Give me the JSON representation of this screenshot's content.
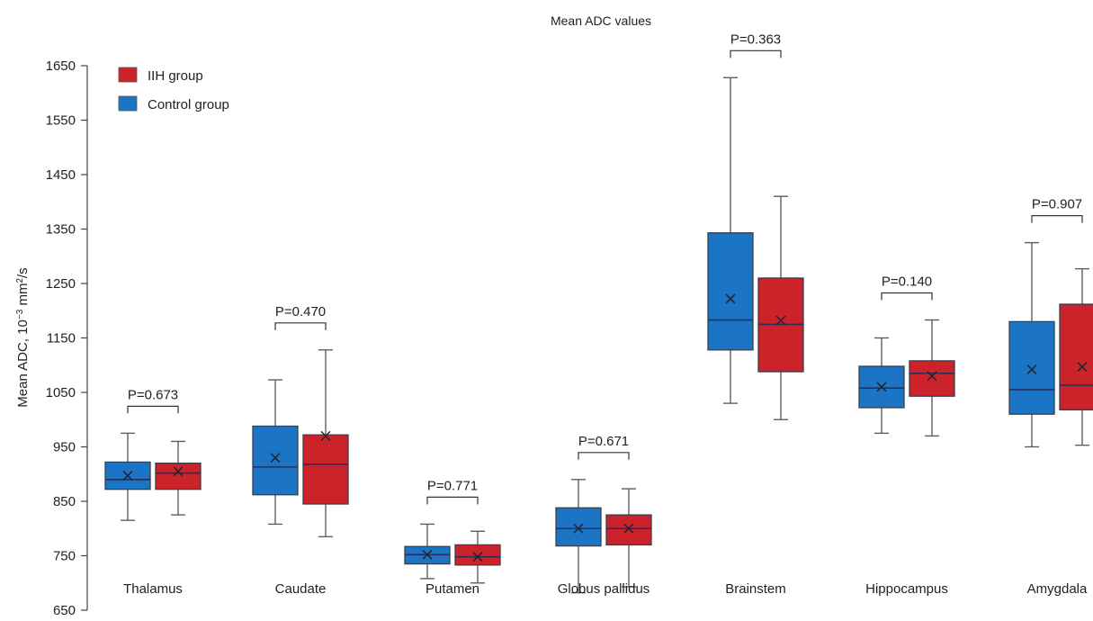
{
  "chart_data": {
    "type": "box",
    "title": "Mean ADC values",
    "xlabel": "",
    "ylabel": "Mean ADC, 10",
    "ylabel_exponent": "−3",
    "ylabel_unit": " mm",
    "ylabel_unit_exponent": "2",
    "ylabel_suffix": "/s",
    "ylim": [
      650,
      1650
    ],
    "yticks": [
      650,
      750,
      850,
      950,
      1050,
      1150,
      1250,
      1350,
      1450,
      1550,
      1650
    ],
    "grid": false,
    "legend_position": "top-left",
    "categories": [
      "Thalamus",
      "Caudate",
      "Putamen",
      "Globus pallidus",
      "Brainstem",
      "Hippocampus",
      "Amygdala"
    ],
    "p_values": [
      "P=0.673",
      "P=0.470",
      "P=0.771",
      "P=0.671",
      "P=0.363",
      "P=0.140",
      "P=0.907"
    ],
    "series": [
      {
        "name": "IIH group",
        "color": "#cc2229",
        "boxes": [
          {
            "min": 825,
            "q1": 872,
            "median": 902,
            "q3": 920,
            "max": 960,
            "mean": 905
          },
          {
            "min": 785,
            "q1": 845,
            "median": 918,
            "q3": 972,
            "max": 1128,
            "mean": 970
          },
          {
            "min": 700,
            "q1": 733,
            "median": 748,
            "q3": 770,
            "max": 795,
            "mean": 748
          },
          {
            "min": 693,
            "q1": 770,
            "median": 800,
            "q3": 825,
            "max": 873,
            "mean": 800
          },
          {
            "min": 1000,
            "q1": 1088,
            "median": 1175,
            "q3": 1260,
            "max": 1410,
            "mean": 1182
          },
          {
            "min": 970,
            "q1": 1043,
            "median": 1085,
            "q3": 1108,
            "max": 1183,
            "mean": 1080
          },
          {
            "min": 953,
            "q1": 1018,
            "median": 1063,
            "q3": 1212,
            "max": 1277,
            "mean": 1097
          }
        ]
      },
      {
        "name": "Control group",
        "color": "#1c74c4",
        "boxes": [
          {
            "min": 815,
            "q1": 872,
            "median": 890,
            "q3": 922,
            "max": 975,
            "mean": 897
          },
          {
            "min": 808,
            "q1": 862,
            "median": 913,
            "q3": 988,
            "max": 1073,
            "mean": 930
          },
          {
            "min": 708,
            "q1": 735,
            "median": 752,
            "q3": 767,
            "max": 808,
            "mean": 752
          },
          {
            "min": 682,
            "q1": 768,
            "median": 800,
            "q3": 838,
            "max": 890,
            "mean": 800
          },
          {
            "min": 1030,
            "q1": 1128,
            "median": 1183,
            "q3": 1343,
            "max": 1628,
            "mean": 1222
          },
          {
            "min": 975,
            "q1": 1022,
            "median": 1058,
            "q3": 1098,
            "max": 1150,
            "mean": 1060
          },
          {
            "min": 950,
            "q1": 1010,
            "median": 1055,
            "q3": 1180,
            "max": 1325,
            "mean": 1092
          }
        ]
      }
    ]
  }
}
